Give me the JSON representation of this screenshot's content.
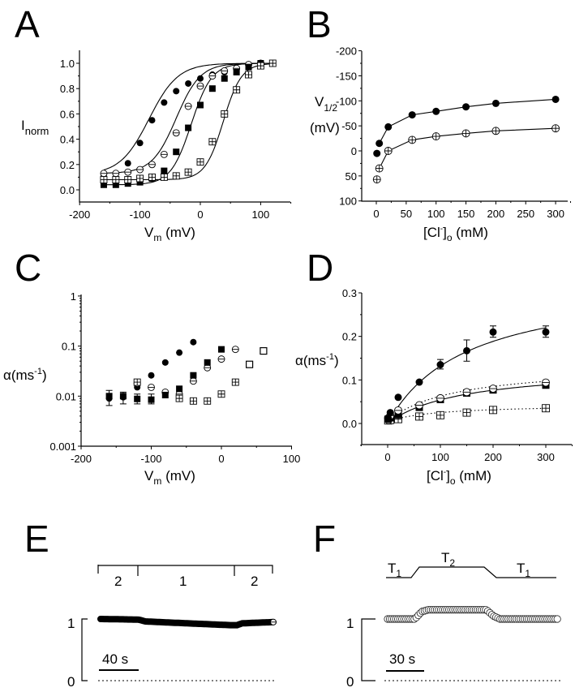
{
  "figure": {
    "panels": [
      "A",
      "B",
      "C",
      "D",
      "E",
      "F"
    ]
  },
  "chart_data": [
    {
      "panel": "A",
      "type": "scatter",
      "title": "",
      "xlabel": "V_m (mV)",
      "ylabel": "I_norm",
      "xlim": [
        -200,
        150
      ],
      "ylim": [
        -0.1,
        1.1
      ],
      "xticks": [
        "-200",
        "-100",
        "0",
        "100"
      ],
      "yticks": [
        "0.0",
        "0.2",
        "0.4",
        "0.6",
        "0.8",
        "1.0"
      ],
      "grid": false,
      "fits": "boltzmann",
      "series": [
        {
          "name": "filled-circle",
          "marker": "filled-circle",
          "v_half": -85,
          "slope": 24,
          "x": [
            -160,
            -140,
            -120,
            -100,
            -80,
            -60,
            -40,
            -20,
            0,
            20,
            40,
            60,
            80,
            100
          ],
          "y": [
            0.12,
            0.13,
            0.21,
            0.37,
            0.55,
            0.69,
            0.78,
            0.84,
            0.88,
            0.91,
            0.93,
            0.96,
            0.98,
            1.0
          ]
        },
        {
          "name": "open-circle-bar",
          "marker": "circle-hline",
          "v_half": -40,
          "slope": 20,
          "x": [
            -160,
            -140,
            -120,
            -100,
            -80,
            -60,
            -40,
            -20,
            0,
            20,
            40,
            60,
            80,
            100
          ],
          "y": [
            0.13,
            0.13,
            0.14,
            0.16,
            0.2,
            0.28,
            0.45,
            0.66,
            0.82,
            0.9,
            0.94,
            0.96,
            0.99,
            1.0
          ]
        },
        {
          "name": "filled-square",
          "marker": "filled-square",
          "v_half": -15,
          "slope": 17,
          "x": [
            -160,
            -140,
            -120,
            -100,
            -80,
            -60,
            -40,
            -20,
            0,
            20,
            40,
            60,
            80,
            100
          ],
          "y": [
            0.04,
            0.04,
            0.05,
            0.06,
            0.09,
            0.15,
            0.3,
            0.49,
            0.67,
            0.8,
            0.88,
            0.93,
            0.97,
            1.0
          ]
        },
        {
          "name": "square-grid",
          "marker": "square-grid",
          "v_half": 38,
          "slope": 15,
          "x": [
            -160,
            -140,
            -120,
            -100,
            -80,
            -60,
            -40,
            -20,
            0,
            20,
            40,
            60,
            80,
            100,
            120
          ],
          "y": [
            0.08,
            0.08,
            0.08,
            0.09,
            0.1,
            0.1,
            0.11,
            0.14,
            0.22,
            0.38,
            0.6,
            0.79,
            0.91,
            0.98,
            1.0
          ]
        }
      ]
    },
    {
      "panel": "B",
      "type": "line",
      "xlabel": "[Cl-]o (mM)",
      "ylabel": "V1/2 (mV)",
      "xlim": [
        -20,
        330
      ],
      "ylim": [
        100,
        -200
      ],
      "xticks": [
        "0",
        "50",
        "100",
        "150",
        "200",
        "250",
        "300"
      ],
      "yticks": [
        "-200",
        "-150",
        "-100",
        "-50",
        "0",
        "50",
        "100"
      ],
      "grid": false,
      "series": [
        {
          "name": "filled-circle",
          "marker": "filled-circle",
          "x": [
            1,
            5,
            20,
            60,
            100,
            150,
            200,
            300
          ],
          "y": [
            5,
            -15,
            -48,
            -72,
            -79,
            -88,
            -95,
            -103
          ]
        },
        {
          "name": "circle-cross",
          "marker": "circle-cross",
          "x": [
            1,
            5,
            20,
            60,
            100,
            150,
            200,
            300
          ],
          "y": [
            57,
            35,
            0,
            -22,
            -29,
            -35,
            -40,
            -45
          ]
        }
      ]
    },
    {
      "panel": "C",
      "type": "scatter",
      "xlabel": "V_m (mV)",
      "ylabel": "α(ms-1)",
      "xscale": "linear",
      "yscale": "log",
      "xlim": [
        -200,
        100
      ],
      "ylim": [
        0.001,
        1
      ],
      "xticks": [
        "-200",
        "-100",
        "0",
        "100"
      ],
      "yticks": [
        "0.001",
        "0.01",
        "0.1",
        "1"
      ],
      "grid": false,
      "series": [
        {
          "name": "filled-circle",
          "marker": "filled-circle",
          "x": [
            -160,
            -140,
            -120,
            -100,
            -80,
            -60,
            -40
          ],
          "y": [
            0.009,
            0.0095,
            0.015,
            0.026,
            0.047,
            0.074,
            0.12
          ]
        },
        {
          "name": "circle-hline",
          "marker": "circle-hline",
          "x": [
            -120,
            -100,
            -80,
            -60,
            -40,
            -20,
            0,
            20
          ],
          "y": [
            0.018,
            0.015,
            0.012,
            0.011,
            0.02,
            0.037,
            0.055,
            0.086
          ]
        },
        {
          "name": "filled-square",
          "marker": "filled-square",
          "x": [
            -160,
            -140,
            -120,
            -100,
            -80,
            -60,
            -40,
            -20,
            0
          ],
          "y": [
            0.01,
            0.01,
            0.0088,
            0.0085,
            0.0105,
            0.014,
            0.026,
            0.047,
            0.086
          ]
        },
        {
          "name": "square-grid",
          "marker": "square-grid",
          "x": [
            -120,
            -60,
            -40,
            -20,
            0,
            20
          ],
          "y": [
            0.019,
            0.009,
            0.008,
            0.008,
            0.011,
            0.019
          ]
        },
        {
          "name": "open-square",
          "marker": "open-square",
          "x": [
            40,
            60
          ],
          "y": [
            0.043,
            0.08
          ]
        }
      ]
    },
    {
      "panel": "D",
      "type": "scatter",
      "xlabel": "[Cl-]o (mM)",
      "ylabel": "α(ms-1)",
      "xlim": [
        -50,
        350
      ],
      "ylim": [
        -0.05,
        0.3
      ],
      "xticks": [
        "0",
        "100",
        "200",
        "300"
      ],
      "yticks": [
        "0.0",
        "0.1",
        "0.2",
        "0.3"
      ],
      "grid": false,
      "series": [
        {
          "name": "filled-circle",
          "marker": "filled-circle",
          "fit": "solid",
          "vmax": 0.33,
          "km": 150,
          "x": [
            1,
            5,
            20,
            60,
            100,
            150,
            200,
            300
          ],
          "y": [
            0.012,
            0.025,
            0.06,
            0.095,
            0.135,
            0.167,
            0.21,
            0.21
          ]
        },
        {
          "name": "circle-hline",
          "marker": "circle-hline",
          "fit": "dotted",
          "x": [
            1,
            5,
            20,
            60,
            100,
            150,
            200,
            300
          ],
          "y": [
            0.012,
            0.018,
            0.03,
            0.042,
            0.058,
            0.072,
            0.08,
            0.094
          ]
        },
        {
          "name": "filled-square",
          "marker": "filled-square",
          "fit": "solid",
          "vmax": 0.13,
          "km": 140,
          "x": [
            1,
            5,
            20,
            60,
            100,
            150,
            200,
            300
          ],
          "y": [
            0.01,
            0.013,
            0.02,
            0.037,
            0.055,
            0.07,
            0.077,
            0.088
          ]
        },
        {
          "name": "square-grid",
          "marker": "square-grid",
          "fit": "dotted",
          "x": [
            1,
            5,
            20,
            60,
            100,
            150,
            200,
            300
          ],
          "y": [
            0.007,
            0.008,
            0.01,
            0.016,
            0.019,
            0.025,
            0.031,
            0.035
          ]
        }
      ]
    },
    {
      "panel": "E",
      "type": "line",
      "ylabel_ticks": [
        "0",
        "1"
      ],
      "scale_bar": "40 s",
      "segments": [
        "2",
        "1",
        "2"
      ],
      "series": [
        {
          "name": "trace",
          "marker": "filled-circle",
          "t": [
            0,
            0.22,
            0.26,
            0.5,
            0.75,
            0.79,
            0.82,
            1.0
          ],
          "y": [
            1.0,
            0.99,
            0.96,
            0.93,
            0.9,
            0.9,
            0.93,
            0.95
          ]
        }
      ]
    },
    {
      "panel": "F",
      "type": "line",
      "ylabel_ticks": [
        "0",
        "1"
      ],
      "scale_bar": "30 s",
      "segments": [
        "T1",
        "T2",
        "T1"
      ],
      "series": [
        {
          "name": "trace",
          "marker": "circle-hatched",
          "t": [
            0,
            0.16,
            0.2,
            0.24,
            0.58,
            0.62,
            0.66,
            1.0
          ],
          "y": [
            1.0,
            1.0,
            1.12,
            1.15,
            1.15,
            1.05,
            1.0,
            1.0
          ]
        }
      ]
    }
  ],
  "labels": {
    "A": {
      "letter": "A",
      "ylabel_main": "I",
      "ylabel_sub": "norm",
      "xlabel_main": "V",
      "xlabel_sub": "m",
      "xlabel_unit": " (mV)"
    },
    "B": {
      "letter": "B",
      "ylabel_main": "V",
      "ylabel_sub": "1/2",
      "ylabel_unit": "(mV)",
      "xlabel_pre": "[Cl",
      "xlabel_sup": "-",
      "xlabel_close": "]",
      "xlabel_sub": "o",
      "xlabel_unit": " (mM)"
    },
    "C": {
      "letter": "C",
      "ylabel_main": "α(ms",
      "ylabel_sup": "-1",
      "ylabel_close": ")",
      "xlabel_main": "V",
      "xlabel_sub": "m",
      "xlabel_unit": " (mV)"
    },
    "D": {
      "letter": "D",
      "ylabel_main": "α(ms",
      "ylabel_sup": "-1",
      "ylabel_close": ")",
      "xlabel_pre": "[Cl",
      "xlabel_sup": "-",
      "xlabel_close": "]",
      "xlabel_sub": "o",
      "xlabel_unit": " (mM)"
    },
    "E": {
      "letter": "E",
      "tick_one": "1",
      "tick_zero": "0",
      "scale": "40 s",
      "seg1": "2",
      "seg2": "1",
      "seg3": "2"
    },
    "F": {
      "letter": "F",
      "tick_one": "1",
      "tick_zero": "0",
      "scale": "30 s",
      "seg1": "T",
      "seg1_sub": "1",
      "seg2": "T",
      "seg2_sub": "2",
      "seg3": "T",
      "seg3_sub": "1"
    }
  }
}
